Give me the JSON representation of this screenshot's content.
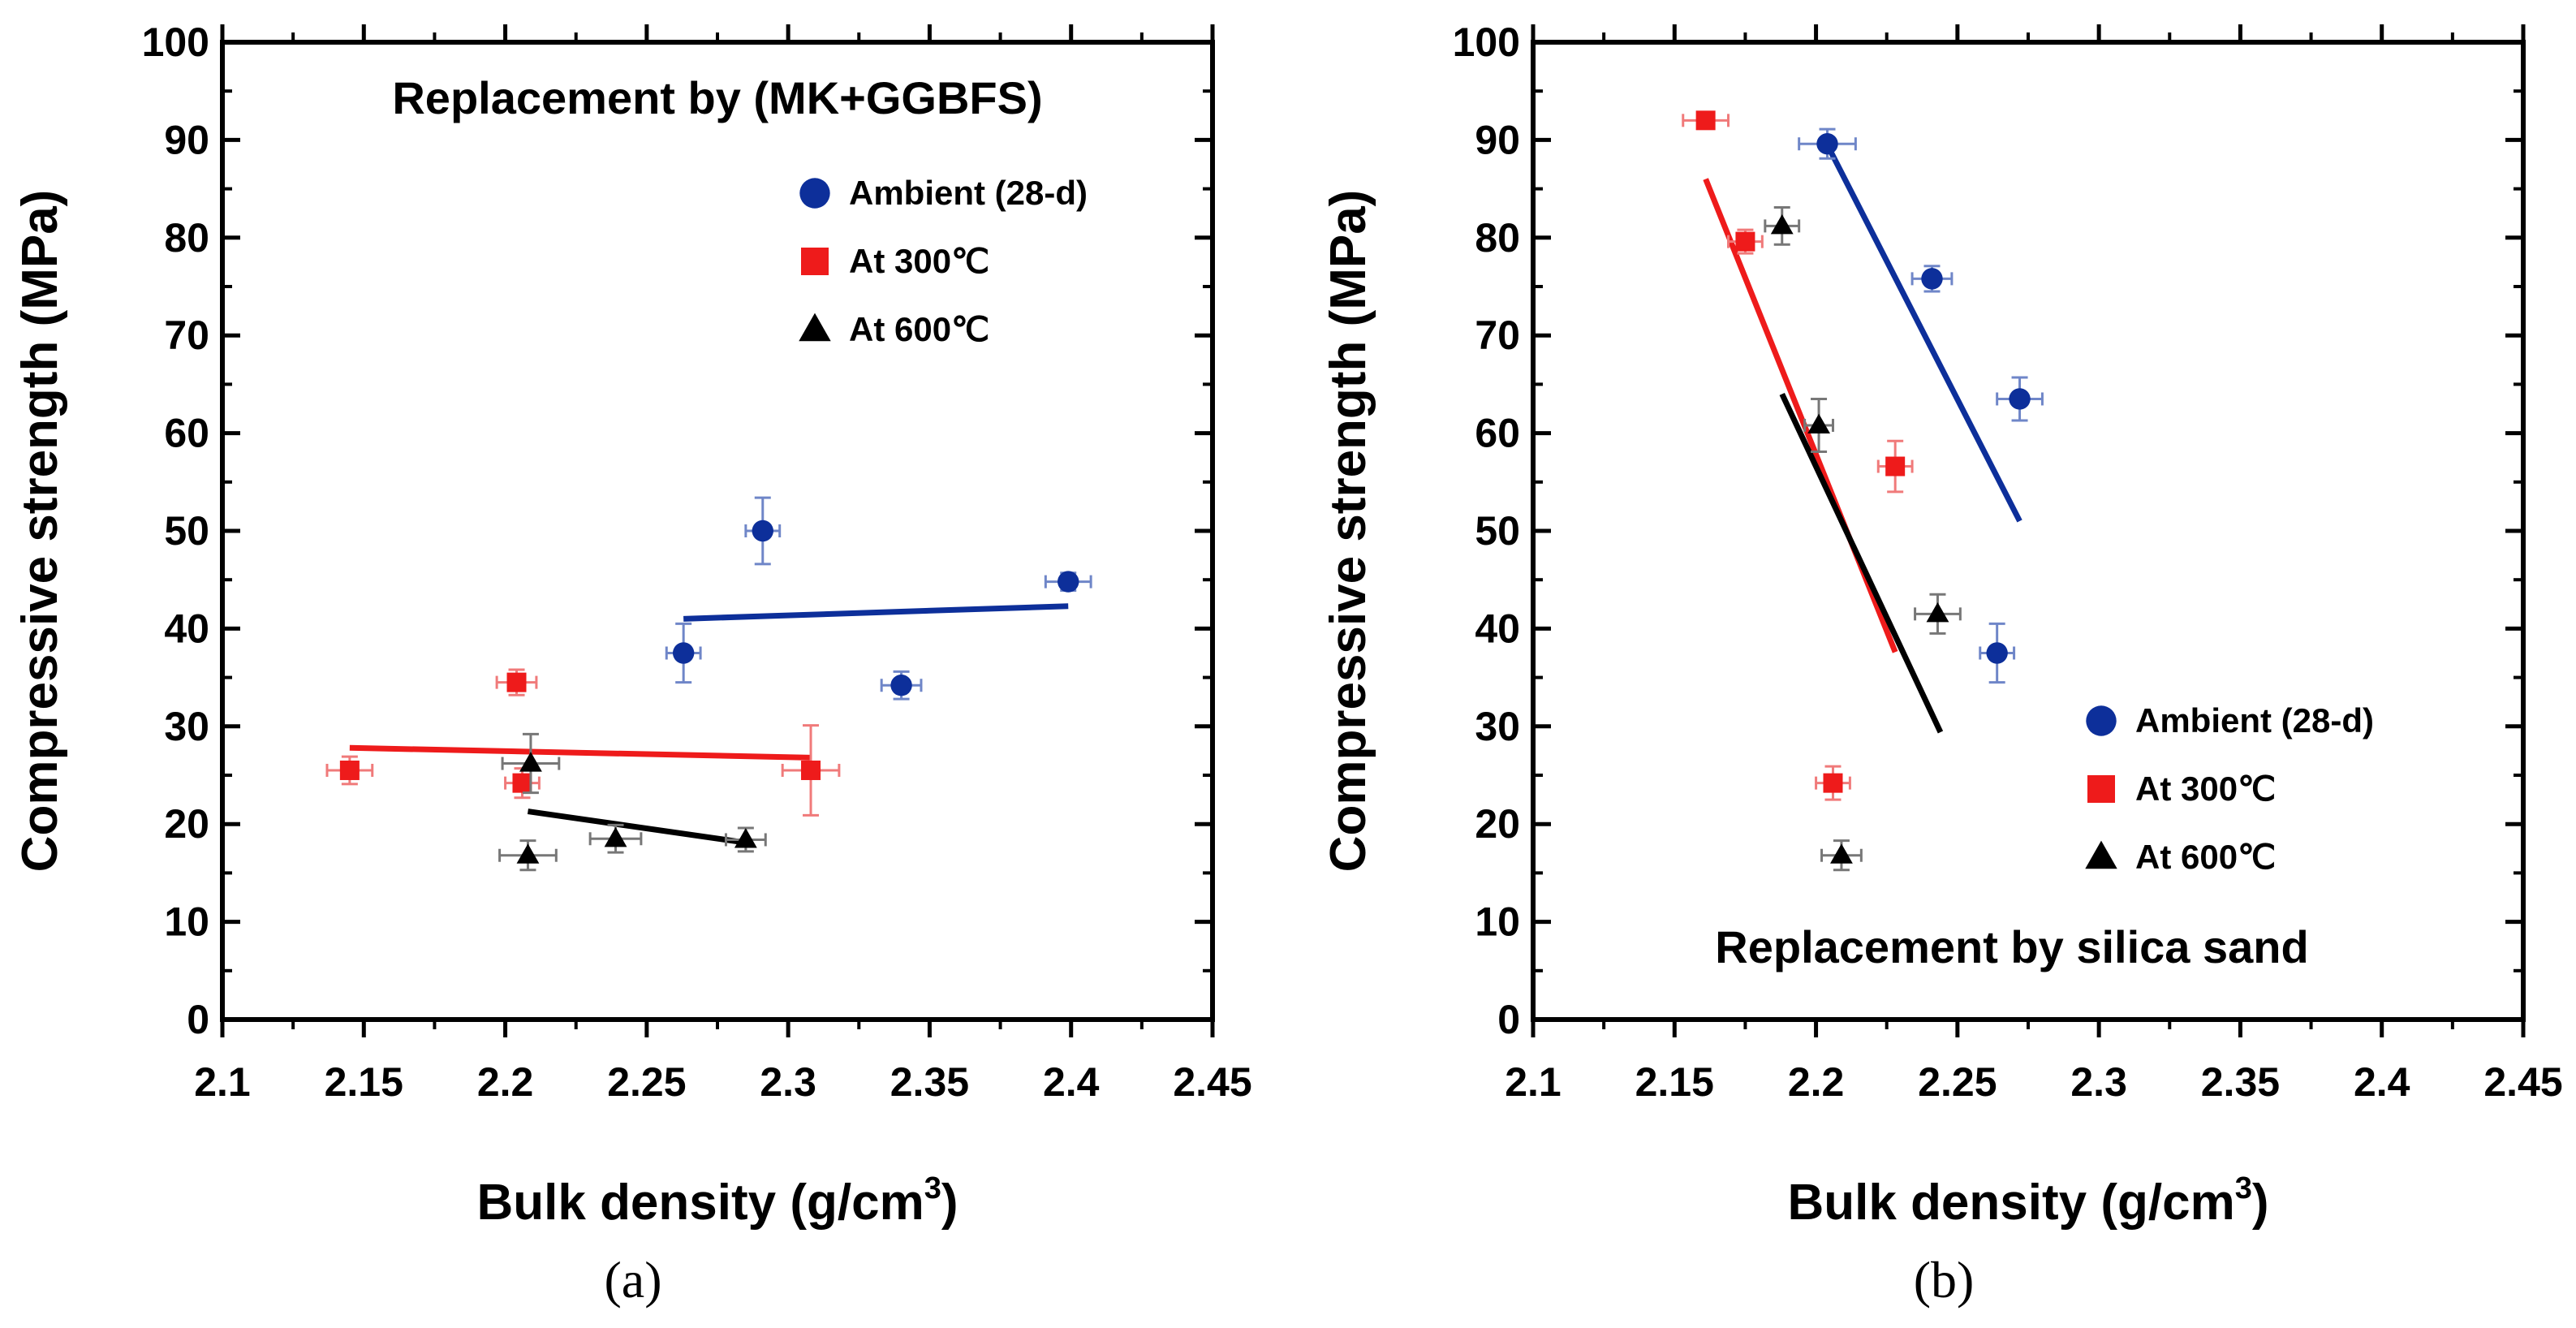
{
  "chart_data": [
    {
      "type": "scatter",
      "panel_label": "(a)",
      "title": "Replacement by (MK+GGBFS)",
      "title_position": "top",
      "xlabel_main": "Bulk density (g/cm",
      "xlabel_sup": "3",
      "xlabel_end": ")",
      "ylabel": "Compressive strength (MPa)",
      "xlim": [
        2.1,
        2.45
      ],
      "ylim": [
        0,
        100
      ],
      "xticks": [
        2.1,
        2.15,
        2.2,
        2.25,
        2.3,
        2.35,
        2.4,
        2.45
      ],
      "xtick_labels": [
        "2.1",
        "2.15",
        "2.2",
        "2.25",
        "2.3",
        "2.35",
        "2.4",
        "2.45"
      ],
      "yticks": [
        0,
        10,
        20,
        30,
        40,
        50,
        60,
        70,
        80,
        90,
        100
      ],
      "ytick_labels": [
        "0",
        "10",
        "20",
        "30",
        "40",
        "50",
        "60",
        "70",
        "80",
        "90",
        "100"
      ],
      "legend_position": "top-right",
      "series": [
        {
          "name": "Ambient (28-d)",
          "marker": "circle",
          "color": "#0d2f9a",
          "err_color": "#6f86c8",
          "points": [
            {
              "x": 2.263,
              "y": 37.5,
              "xerr": 0.006,
              "yerr": 3.0
            },
            {
              "x": 2.291,
              "y": 50.0,
              "xerr": 0.006,
              "yerr": 3.4
            },
            {
              "x": 2.34,
              "y": 34.2,
              "xerr": 0.007,
              "yerr": 1.4
            },
            {
              "x": 2.399,
              "y": 44.8,
              "xerr": 0.008,
              "yerr": 0.9
            }
          ],
          "fit": [
            [
              2.263,
              41.0
            ],
            [
              2.399,
              42.3
            ]
          ]
        },
        {
          "name": "At 300℃",
          "marker": "square",
          "color": "#ee1b1b",
          "err_color": "#f07a7a",
          "points": [
            {
              "x": 2.145,
              "y": 25.5,
              "xerr": 0.008,
              "yerr": 1.4
            },
            {
              "x": 2.204,
              "y": 34.5,
              "xerr": 0.007,
              "yerr": 1.3
            },
            {
              "x": 2.206,
              "y": 24.2,
              "xerr": 0.006,
              "yerr": 1.5
            },
            {
              "x": 2.308,
              "y": 25.5,
              "xerr": 0.01,
              "yerr": 4.6
            }
          ],
          "fit": [
            [
              2.145,
              27.8
            ],
            [
              2.308,
              26.8
            ]
          ]
        },
        {
          "name": "At 600℃",
          "marker": "triangle",
          "color": "#000000",
          "err_color": "#777777",
          "points": [
            {
              "x": 2.208,
              "y": 16.8,
              "xerr": 0.01,
              "yerr": 1.5
            },
            {
              "x": 2.209,
              "y": 26.2,
              "xerr": 0.01,
              "yerr": 3.0
            },
            {
              "x": 2.239,
              "y": 18.5,
              "xerr": 0.009,
              "yerr": 1.4
            },
            {
              "x": 2.285,
              "y": 18.4,
              "xerr": 0.007,
              "yerr": 1.2
            }
          ],
          "fit": [
            [
              2.208,
              21.3
            ],
            [
              2.285,
              18.1
            ]
          ]
        }
      ]
    },
    {
      "type": "scatter",
      "panel_label": "(b)",
      "title": "Replacement by silica sand",
      "title_position": "bottom",
      "xlabel_main": "Bulk density (g/cm",
      "xlabel_sup": "3",
      "xlabel_end": ")",
      "ylabel": "Compressive strength (MPa)",
      "xlim": [
        2.1,
        2.45
      ],
      "ylim": [
        0,
        100
      ],
      "xticks": [
        2.1,
        2.15,
        2.2,
        2.25,
        2.3,
        2.35,
        2.4,
        2.45
      ],
      "xtick_labels": [
        "2.1",
        "2.15",
        "2.2",
        "2.25",
        "2.3",
        "2.35",
        "2.4",
        "2.45"
      ],
      "yticks": [
        0,
        10,
        20,
        30,
        40,
        50,
        60,
        70,
        80,
        90,
        100
      ],
      "ytick_labels": [
        "0",
        "10",
        "20",
        "30",
        "40",
        "50",
        "60",
        "70",
        "80",
        "90",
        "100"
      ],
      "legend_position": "bottom-right",
      "series": [
        {
          "name": "Ambient (28-d)",
          "marker": "circle",
          "color": "#0d2f9a",
          "err_color": "#6f86c8",
          "points": [
            {
              "x": 2.204,
              "y": 89.6,
              "xerr": 0.01,
              "yerr": 1.5
            },
            {
              "x": 2.241,
              "y": 75.8,
              "xerr": 0.007,
              "yerr": 1.3
            },
            {
              "x": 2.264,
              "y": 37.5,
              "xerr": 0.006,
              "yerr": 3.0
            },
            {
              "x": 2.272,
              "y": 63.5,
              "xerr": 0.008,
              "yerr": 2.2
            }
          ],
          "fit": [
            [
              2.204,
              89.5
            ],
            [
              2.272,
              51.0
            ]
          ]
        },
        {
          "name": "At 300℃",
          "marker": "square",
          "color": "#ee1b1b",
          "err_color": "#f07a7a",
          "points": [
            {
              "x": 2.161,
              "y": 92.0,
              "xerr": 0.008,
              "yerr": 0.6
            },
            {
              "x": 2.175,
              "y": 79.6,
              "xerr": 0.006,
              "yerr": 1.2
            },
            {
              "x": 2.206,
              "y": 24.2,
              "xerr": 0.006,
              "yerr": 1.7
            },
            {
              "x": 2.228,
              "y": 56.6,
              "xerr": 0.006,
              "yerr": 2.6
            }
          ],
          "fit": [
            [
              2.161,
              86.0
            ],
            [
              2.228,
              37.6
            ]
          ]
        },
        {
          "name": "At 600℃",
          "marker": "triangle",
          "color": "#000000",
          "err_color": "#777777",
          "points": [
            {
              "x": 2.188,
              "y": 81.2,
              "xerr": 0.006,
              "yerr": 1.9
            },
            {
              "x": 2.201,
              "y": 60.8,
              "xerr": 0.005,
              "yerr": 2.7
            },
            {
              "x": 2.209,
              "y": 16.8,
              "xerr": 0.007,
              "yerr": 1.5
            },
            {
              "x": 2.243,
              "y": 41.5,
              "xerr": 0.008,
              "yerr": 2.0
            }
          ],
          "fit": [
            [
              2.188,
              64.0
            ],
            [
              2.244,
              29.4
            ]
          ]
        }
      ]
    }
  ]
}
